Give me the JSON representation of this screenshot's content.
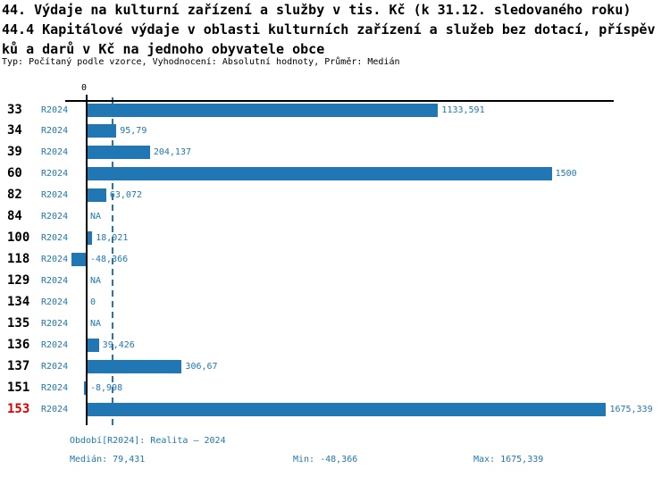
{
  "title": {
    "line1": "44. Výdaje na kulturní zařízení a služby v tis. Kč (k 31.12. sledovaného roku)",
    "line2": "44.4 Kapitálové výdaje v oblasti kulturních zařízení a služeb bez dotací, příspěv",
    "line3": "ků a darů v Kč na jednoho obyvatele obce",
    "subtitle": "Typ: Počítaný podle vzorce, Vyhodnocení: Absolutní hodnoty, Průměr: Medián"
  },
  "chart_data": {
    "type": "bar",
    "orientation": "horizontal",
    "categories": [
      "33",
      "34",
      "39",
      "60",
      "82",
      "84",
      "100",
      "118",
      "129",
      "134",
      "135",
      "136",
      "137",
      "151",
      "153"
    ],
    "values": [
      1133.591,
      95.79,
      204.137,
      1500,
      63.072,
      null,
      18.021,
      -48.366,
      null,
      0,
      null,
      39.426,
      306.67,
      -8.998,
      1675.339
    ],
    "value_labels": [
      "1133,591",
      "95,79",
      "204,137",
      "1500",
      "63,072",
      "NA",
      "18,021",
      "-48,366",
      "NA",
      "0",
      "NA",
      "39,426",
      "306,67",
      "-8,998",
      "1675,339"
    ],
    "period_label": "R2024",
    "zero_tick_label": "0",
    "highlighted_category": "153",
    "median_value": 79.431,
    "xlim": [
      0,
      1700
    ],
    "grid": false,
    "bar_color": "#2077b4",
    "accent_text_color": "#1f77b4",
    "highlight_color": "#dd0000",
    "median_line_color": "#2077b4"
  },
  "footer": {
    "period": "Období[R2024]: Realita – 2024",
    "median": "Medián: 79,431",
    "min": "Min: -48,366",
    "max": "Max: 1675,339"
  }
}
